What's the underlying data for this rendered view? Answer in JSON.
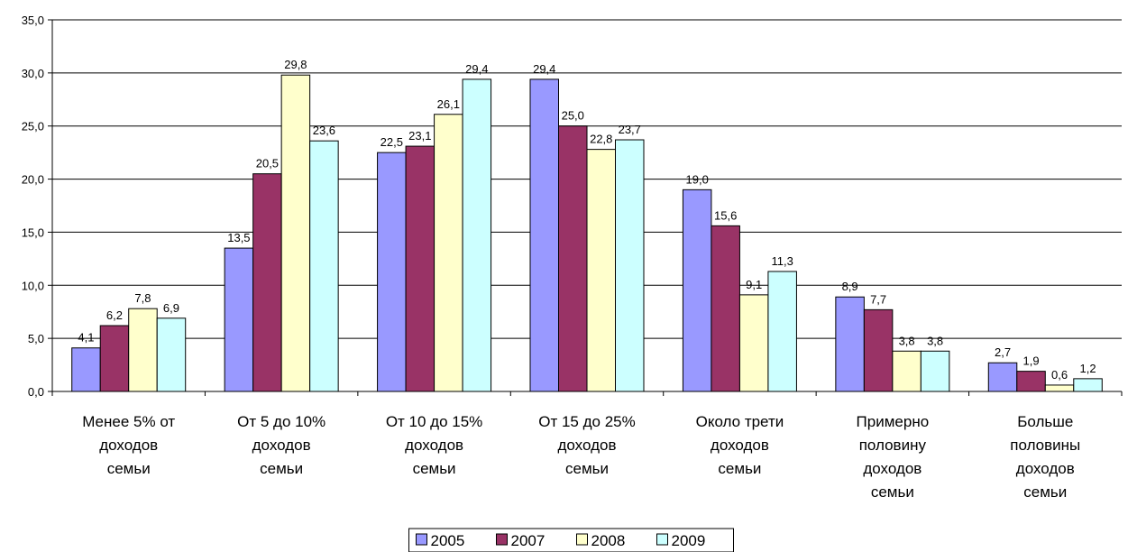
{
  "chart_data": {
    "type": "bar",
    "categories": [
      [
        "Менее 5% от",
        "доходов",
        "семьи"
      ],
      [
        "От 5 до 10%",
        "доходов",
        "семьи"
      ],
      [
        "От 10 до 15%",
        "доходов",
        "семьи"
      ],
      [
        "От 15 до 25%",
        "доходов",
        "семьи"
      ],
      [
        "Около трети",
        "доходов",
        "семьи"
      ],
      [
        "Примерно",
        "половину",
        "доходов",
        "семьи"
      ],
      [
        "Больше",
        "половины",
        "доходов",
        "семьи"
      ]
    ],
    "series": [
      {
        "name": "2005",
        "color": "#9999ff",
        "values": [
          4.1,
          13.5,
          22.5,
          29.4,
          19.0,
          8.9,
          2.7
        ],
        "labels": [
          "4,1",
          "13,5",
          "22,5",
          "29,4",
          "19,0",
          "8,9",
          "2,7"
        ]
      },
      {
        "name": "2007",
        "color": "#993366",
        "values": [
          6.2,
          20.5,
          23.1,
          25.0,
          15.6,
          7.7,
          1.9
        ],
        "labels": [
          "6,2",
          "20,5",
          "23,1",
          "25,0",
          "15,6",
          "7,7",
          "1,9"
        ]
      },
      {
        "name": "2008",
        "color": "#ffffcc",
        "values": [
          7.8,
          29.8,
          26.1,
          22.8,
          9.1,
          3.8,
          0.6
        ],
        "labels": [
          "7,8",
          "29,8",
          "26,1",
          "22,8",
          "9,1",
          "3,8",
          "0,6"
        ]
      },
      {
        "name": "2009",
        "color": "#ccffff",
        "values": [
          6.9,
          23.6,
          29.4,
          23.7,
          11.3,
          3.8,
          1.2
        ],
        "labels": [
          "6,9",
          "23,6",
          "29,4",
          "23,7",
          "11,3",
          "3,8",
          "1,2"
        ]
      }
    ],
    "y_ticks": [
      "0,0",
      "5,0",
      "10,0",
      "15,0",
      "20,0",
      "25,0",
      "30,0",
      "35,0"
    ],
    "ylim": [
      0,
      35
    ],
    "grid": true,
    "legend_position": "bottom-center"
  }
}
